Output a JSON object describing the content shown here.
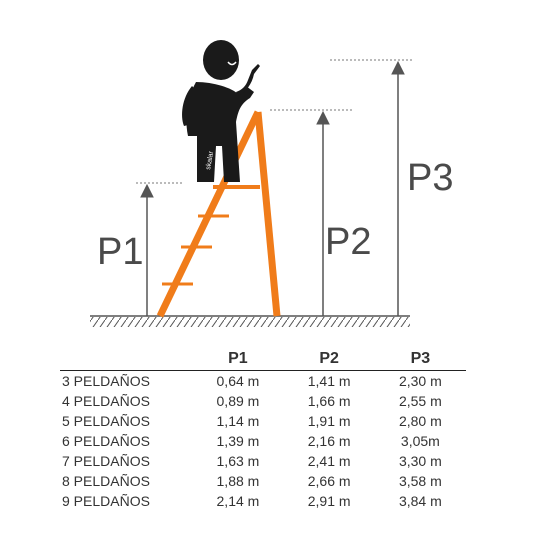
{
  "figure": {
    "labels": {
      "p1": "P1",
      "p2": "P2",
      "p3": "P3"
    },
    "brand": "skalar",
    "colors": {
      "ladder": "#F07C1A",
      "figure": "#1a1a1a",
      "lines": "#555555"
    }
  },
  "table": {
    "headers": [
      "",
      "P1",
      "P2",
      "P3"
    ],
    "rows": [
      [
        "3 PELDAÑOS",
        "0,64 m",
        "1,41 m",
        "2,30 m"
      ],
      [
        "4 PELDAÑOS",
        "0,89 m",
        "1,66 m",
        "2,55 m"
      ],
      [
        "5 PELDAÑOS",
        "1,14 m",
        "1,91 m",
        "2,80 m"
      ],
      [
        "6 PELDAÑOS",
        "1,39 m",
        "2,16 m",
        "3,05m"
      ],
      [
        "7 PELDAÑOS",
        "1,63 m",
        "2,41 m",
        "3,30 m"
      ],
      [
        "8 PELDAÑOS",
        "1,88 m",
        "2,66 m",
        "3,58 m"
      ],
      [
        "9 PELDAÑOS",
        "2,14 m",
        "2,91 m",
        "3,84 m"
      ]
    ]
  }
}
